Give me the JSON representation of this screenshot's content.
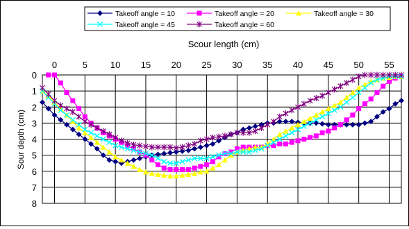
{
  "chart_data": {
    "type": "line",
    "title": "",
    "xlabel": "Scour length (cm)",
    "ylabel": "Sour depth (cm)",
    "xlim": [
      -2,
      57
    ],
    "ylim": [
      0,
      8
    ],
    "y_inverted": true,
    "x_axis_position": "top",
    "x_ticks": [
      0,
      5,
      10,
      15,
      20,
      25,
      30,
      35,
      40,
      45,
      50,
      55
    ],
    "y_ticks": [
      0,
      1,
      2,
      3,
      4,
      5,
      6,
      7,
      8
    ],
    "grid": true,
    "legend_placement": "top",
    "series": [
      {
        "name": "Takeoff angle = 10",
        "color": "#000080",
        "marker": "diamond",
        "points": [
          [
            -2,
            1.7
          ],
          [
            -1,
            2.1
          ],
          [
            0,
            2.5
          ],
          [
            1,
            2.8
          ],
          [
            2,
            3.1
          ],
          [
            3,
            3.4
          ],
          [
            4,
            3.7
          ],
          [
            5,
            4.0
          ],
          [
            6,
            4.3
          ],
          [
            7,
            4.6
          ],
          [
            8,
            5.0
          ],
          [
            9,
            5.3
          ],
          [
            10,
            5.4
          ],
          [
            11,
            5.5
          ],
          [
            12,
            5.4
          ],
          [
            13,
            5.3
          ],
          [
            14,
            5.2
          ],
          [
            15,
            5.1
          ],
          [
            16,
            5.0
          ],
          [
            17,
            4.95
          ],
          [
            18,
            4.9
          ],
          [
            19,
            4.85
          ],
          [
            20,
            4.8
          ],
          [
            21,
            4.75
          ],
          [
            22,
            4.7
          ],
          [
            23,
            4.6
          ],
          [
            24,
            4.5
          ],
          [
            25,
            4.4
          ],
          [
            26,
            4.3
          ],
          [
            27,
            4.1
          ],
          [
            28,
            3.9
          ],
          [
            29,
            3.7
          ],
          [
            30,
            3.6
          ],
          [
            31,
            3.4
          ],
          [
            32,
            3.3
          ],
          [
            33,
            3.2
          ],
          [
            34,
            3.1
          ],
          [
            35,
            3.0
          ],
          [
            36,
            3.0
          ],
          [
            37,
            2.9
          ],
          [
            38,
            2.9
          ],
          [
            39,
            2.9
          ],
          [
            40,
            2.95
          ],
          [
            41,
            3.0
          ],
          [
            42,
            3.0
          ],
          [
            43,
            3.0
          ],
          [
            44,
            3.05
          ],
          [
            45,
            3.1
          ],
          [
            46,
            3.1
          ],
          [
            47,
            3.1
          ],
          [
            48,
            3.1
          ],
          [
            49,
            3.1
          ],
          [
            50,
            3.1
          ],
          [
            51,
            3.0
          ],
          [
            52,
            2.9
          ],
          [
            53,
            2.6
          ],
          [
            54,
            2.3
          ],
          [
            55,
            2.1
          ],
          [
            56,
            1.8
          ],
          [
            57,
            1.6
          ]
        ]
      },
      {
        "name": "Takeoff angle = 20",
        "color": "#FF00FF",
        "marker": "square",
        "points": [
          [
            -1,
            0
          ],
          [
            0,
            0
          ],
          [
            1,
            0.5
          ],
          [
            2,
            1.1
          ],
          [
            3,
            1.6
          ],
          [
            4,
            2.1
          ],
          [
            5,
            2.6
          ],
          [
            6,
            3.0
          ],
          [
            7,
            3.3
          ],
          [
            8,
            3.6
          ],
          [
            9,
            3.8
          ],
          [
            10,
            4.0
          ],
          [
            11,
            4.2
          ],
          [
            12,
            4.4
          ],
          [
            13,
            4.6
          ],
          [
            14,
            4.8
          ],
          [
            15,
            5.0
          ],
          [
            16,
            5.3
          ],
          [
            17,
            5.6
          ],
          [
            18,
            5.8
          ],
          [
            19,
            5.9
          ],
          [
            20,
            5.9
          ],
          [
            21,
            5.9
          ],
          [
            22,
            5.9
          ],
          [
            23,
            5.8
          ],
          [
            24,
            5.7
          ],
          [
            25,
            5.6
          ],
          [
            26,
            5.4
          ],
          [
            27,
            5.1
          ],
          [
            28,
            4.9
          ],
          [
            29,
            4.8
          ],
          [
            30,
            4.6
          ],
          [
            31,
            4.5
          ],
          [
            32,
            4.5
          ],
          [
            33,
            4.5
          ],
          [
            34,
            4.5
          ],
          [
            35,
            4.4
          ],
          [
            36,
            4.4
          ],
          [
            37,
            4.3
          ],
          [
            38,
            4.3
          ],
          [
            39,
            4.2
          ],
          [
            40,
            4.1
          ],
          [
            41,
            4.0
          ],
          [
            42,
            3.9
          ],
          [
            43,
            3.8
          ],
          [
            44,
            3.6
          ],
          [
            45,
            3.5
          ],
          [
            46,
            3.3
          ],
          [
            47,
            3.1
          ],
          [
            48,
            2.8
          ],
          [
            49,
            2.5
          ],
          [
            50,
            2.1
          ],
          [
            51,
            1.8
          ],
          [
            52,
            1.5
          ],
          [
            53,
            1.1
          ],
          [
            54,
            0.7
          ],
          [
            55,
            0.4
          ],
          [
            56,
            0.2
          ],
          [
            57,
            0.1
          ]
        ]
      },
      {
        "name": "Takeoff angle = 30",
        "color": "#FFFF00",
        "marker": "triangle",
        "points": [
          [
            -2,
            1.0
          ],
          [
            -1,
            1.3
          ],
          [
            0,
            1.7
          ],
          [
            1,
            2.1
          ],
          [
            2,
            2.5
          ],
          [
            3,
            2.9
          ],
          [
            4,
            3.3
          ],
          [
            5,
            3.6
          ],
          [
            6,
            3.9
          ],
          [
            7,
            4.2
          ],
          [
            8,
            4.5
          ],
          [
            9,
            4.8
          ],
          [
            10,
            5.1
          ],
          [
            11,
            5.3
          ],
          [
            12,
            5.5
          ],
          [
            13,
            5.7
          ],
          [
            14,
            5.9
          ],
          [
            15,
            6.05
          ],
          [
            16,
            6.15
          ],
          [
            17,
            6.2
          ],
          [
            18,
            6.25
          ],
          [
            19,
            6.3
          ],
          [
            20,
            6.3
          ],
          [
            21,
            6.25
          ],
          [
            22,
            6.2
          ],
          [
            23,
            6.15
          ],
          [
            24,
            6.05
          ],
          [
            25,
            6.0
          ],
          [
            26,
            5.8
          ],
          [
            27,
            5.6
          ],
          [
            28,
            5.3
          ],
          [
            29,
            5.0
          ],
          [
            30,
            4.8
          ],
          [
            31,
            4.7
          ],
          [
            32,
            4.6
          ],
          [
            33,
            4.5
          ],
          [
            34,
            4.5
          ],
          [
            35,
            4.3
          ],
          [
            36,
            4.0
          ],
          [
            37,
            3.7
          ],
          [
            38,
            3.5
          ],
          [
            39,
            3.3
          ],
          [
            40,
            3.1
          ],
          [
            41,
            2.9
          ],
          [
            42,
            2.7
          ],
          [
            43,
            2.5
          ],
          [
            44,
            2.3
          ],
          [
            45,
            2.1
          ],
          [
            46,
            1.9
          ],
          [
            47,
            1.7
          ],
          [
            48,
            1.4
          ],
          [
            49,
            1.1
          ],
          [
            50,
            0.8
          ],
          [
            51,
            0.6
          ],
          [
            52,
            0.4
          ],
          [
            53,
            0.3
          ],
          [
            54,
            0.2
          ],
          [
            55,
            0.15
          ],
          [
            56,
            0.1
          ],
          [
            57,
            0.1
          ]
        ]
      },
      {
        "name": "Takeoff angle = 45",
        "color": "#00FFFF",
        "marker": "x",
        "points": [
          [
            -2,
            1.0
          ],
          [
            -1,
            1.4
          ],
          [
            0,
            1.8
          ],
          [
            1,
            2.2
          ],
          [
            2,
            2.5
          ],
          [
            3,
            2.8
          ],
          [
            4,
            3.1
          ],
          [
            5,
            3.4
          ],
          [
            6,
            3.6
          ],
          [
            7,
            3.8
          ],
          [
            8,
            4.0
          ],
          [
            9,
            4.2
          ],
          [
            10,
            4.4
          ],
          [
            11,
            4.5
          ],
          [
            12,
            4.6
          ],
          [
            13,
            4.7
          ],
          [
            14,
            4.8
          ],
          [
            15,
            4.9
          ],
          [
            16,
            5.0
          ],
          [
            17,
            5.2
          ],
          [
            18,
            5.4
          ],
          [
            19,
            5.5
          ],
          [
            20,
            5.5
          ],
          [
            21,
            5.4
          ],
          [
            22,
            5.3
          ],
          [
            23,
            5.2
          ],
          [
            24,
            5.2
          ],
          [
            25,
            5.2
          ],
          [
            26,
            5.1
          ],
          [
            27,
            5.0
          ],
          [
            28,
            4.9
          ],
          [
            29,
            4.9
          ],
          [
            30,
            4.8
          ],
          [
            31,
            4.8
          ],
          [
            32,
            4.8
          ],
          [
            33,
            4.7
          ],
          [
            34,
            4.6
          ],
          [
            35,
            4.4
          ],
          [
            36,
            4.2
          ],
          [
            37,
            4.0
          ],
          [
            38,
            3.8
          ],
          [
            39,
            3.6
          ],
          [
            40,
            3.4
          ],
          [
            41,
            3.2
          ],
          [
            42,
            3.0
          ],
          [
            43,
            2.8
          ],
          [
            44,
            2.6
          ],
          [
            45,
            2.4
          ],
          [
            46,
            2.2
          ],
          [
            47,
            2.0
          ],
          [
            48,
            1.7
          ],
          [
            49,
            1.4
          ],
          [
            50,
            1.1
          ],
          [
            51,
            0.8
          ],
          [
            52,
            0.5
          ],
          [
            53,
            0.3
          ],
          [
            54,
            0.2
          ],
          [
            55,
            0.1
          ],
          [
            56,
            0.1
          ],
          [
            57,
            0.1
          ]
        ]
      },
      {
        "name": "Takeoff angle = 60",
        "color": "#800080",
        "marker": "star",
        "points": [
          [
            -2,
            0.8
          ],
          [
            -1,
            1.2
          ],
          [
            0,
            1.6
          ],
          [
            1,
            1.9
          ],
          [
            2,
            2.1
          ],
          [
            3,
            2.3
          ],
          [
            4,
            2.6
          ],
          [
            5,
            2.9
          ],
          [
            6,
            3.1
          ],
          [
            7,
            3.3
          ],
          [
            8,
            3.5
          ],
          [
            9,
            3.7
          ],
          [
            10,
            3.9
          ],
          [
            11,
            4.1
          ],
          [
            12,
            4.25
          ],
          [
            13,
            4.35
          ],
          [
            14,
            4.4
          ],
          [
            15,
            4.45
          ],
          [
            16,
            4.5
          ],
          [
            17,
            4.5
          ],
          [
            18,
            4.5
          ],
          [
            19,
            4.5
          ],
          [
            20,
            4.55
          ],
          [
            21,
            4.5
          ],
          [
            22,
            4.4
          ],
          [
            23,
            4.3
          ],
          [
            24,
            4.1
          ],
          [
            25,
            4.0
          ],
          [
            26,
            3.9
          ],
          [
            27,
            3.85
          ],
          [
            28,
            3.8
          ],
          [
            29,
            3.7
          ],
          [
            30,
            3.6
          ],
          [
            31,
            3.6
          ],
          [
            32,
            3.6
          ],
          [
            33,
            3.5
          ],
          [
            34,
            3.3
          ],
          [
            35,
            3.1
          ],
          [
            36,
            2.9
          ],
          [
            37,
            2.6
          ],
          [
            38,
            2.4
          ],
          [
            39,
            2.2
          ],
          [
            40,
            2.0
          ],
          [
            41,
            1.8
          ],
          [
            42,
            1.6
          ],
          [
            43,
            1.45
          ],
          [
            44,
            1.3
          ],
          [
            45,
            1.1
          ],
          [
            46,
            0.9
          ],
          [
            47,
            0.7
          ],
          [
            48,
            0.5
          ],
          [
            49,
            0.3
          ],
          [
            50,
            0.1
          ],
          [
            51,
            0.0
          ],
          [
            52,
            0.0
          ],
          [
            53,
            0.0
          ],
          [
            54,
            0.0
          ],
          [
            55,
            0.0
          ],
          [
            56,
            0.0
          ],
          [
            57,
            0.0
          ]
        ]
      }
    ]
  }
}
